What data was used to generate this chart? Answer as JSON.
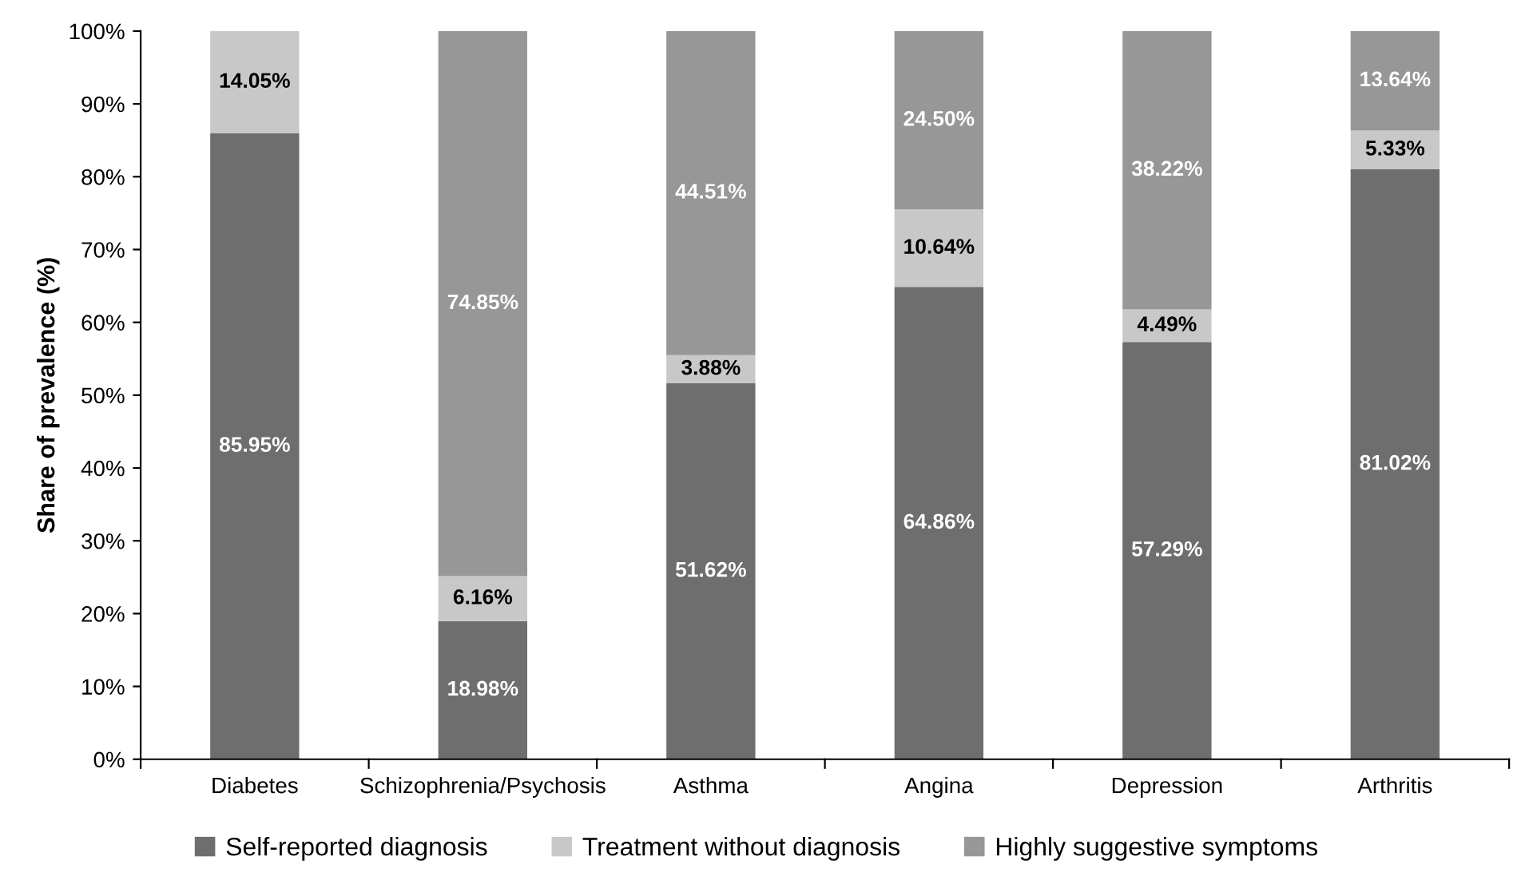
{
  "chart_data": {
    "type": "bar",
    "stacked": true,
    "ylabel": "Share of prevalence (%)",
    "categories": [
      "Diabetes",
      "Schizophrenia/Psychosis",
      "Asthma",
      "Angina",
      "Depression",
      "Arthritis"
    ],
    "series": [
      {
        "name": "Self-reported diagnosis",
        "color": "#6e6e6e",
        "values": [
          85.95,
          18.98,
          51.62,
          64.86,
          57.29,
          81.02
        ],
        "value_labels": [
          "85.95%",
          "18.98%",
          "51.62%",
          "64.86%",
          "57.29%",
          "81.02%"
        ]
      },
      {
        "name": "Treatment without diagnosis",
        "color": "#c8c8c8",
        "values": [
          14.05,
          6.16,
          3.88,
          10.64,
          4.49,
          5.33
        ],
        "value_labels": [
          "14.05%",
          "6.16%",
          "3.88%",
          "10.64%",
          "4.49%",
          "5.33%"
        ]
      },
      {
        "name": "Highly suggestive symptoms",
        "color": "#979797",
        "values": [
          null,
          74.85,
          44.51,
          24.5,
          38.22,
          13.64
        ],
        "value_labels": [
          null,
          "74.85%",
          "44.51%",
          "24.50%",
          "38.22%",
          "13.64%"
        ]
      }
    ],
    "ylim": [
      0,
      100
    ],
    "yticks": [
      {
        "value": 0,
        "label": "0%"
      },
      {
        "value": 10,
        "label": "10%"
      },
      {
        "value": 20,
        "label": "20%"
      },
      {
        "value": 30,
        "label": "30%"
      },
      {
        "value": 40,
        "label": "40%"
      },
      {
        "value": 50,
        "label": "50%"
      },
      {
        "value": 60,
        "label": "60%"
      },
      {
        "value": 70,
        "label": "70%"
      },
      {
        "value": 80,
        "label": "80%"
      },
      {
        "value": 90,
        "label": "90%"
      },
      {
        "value": 100,
        "label": "100%"
      }
    ],
    "grid": false,
    "legend": "bottom"
  }
}
